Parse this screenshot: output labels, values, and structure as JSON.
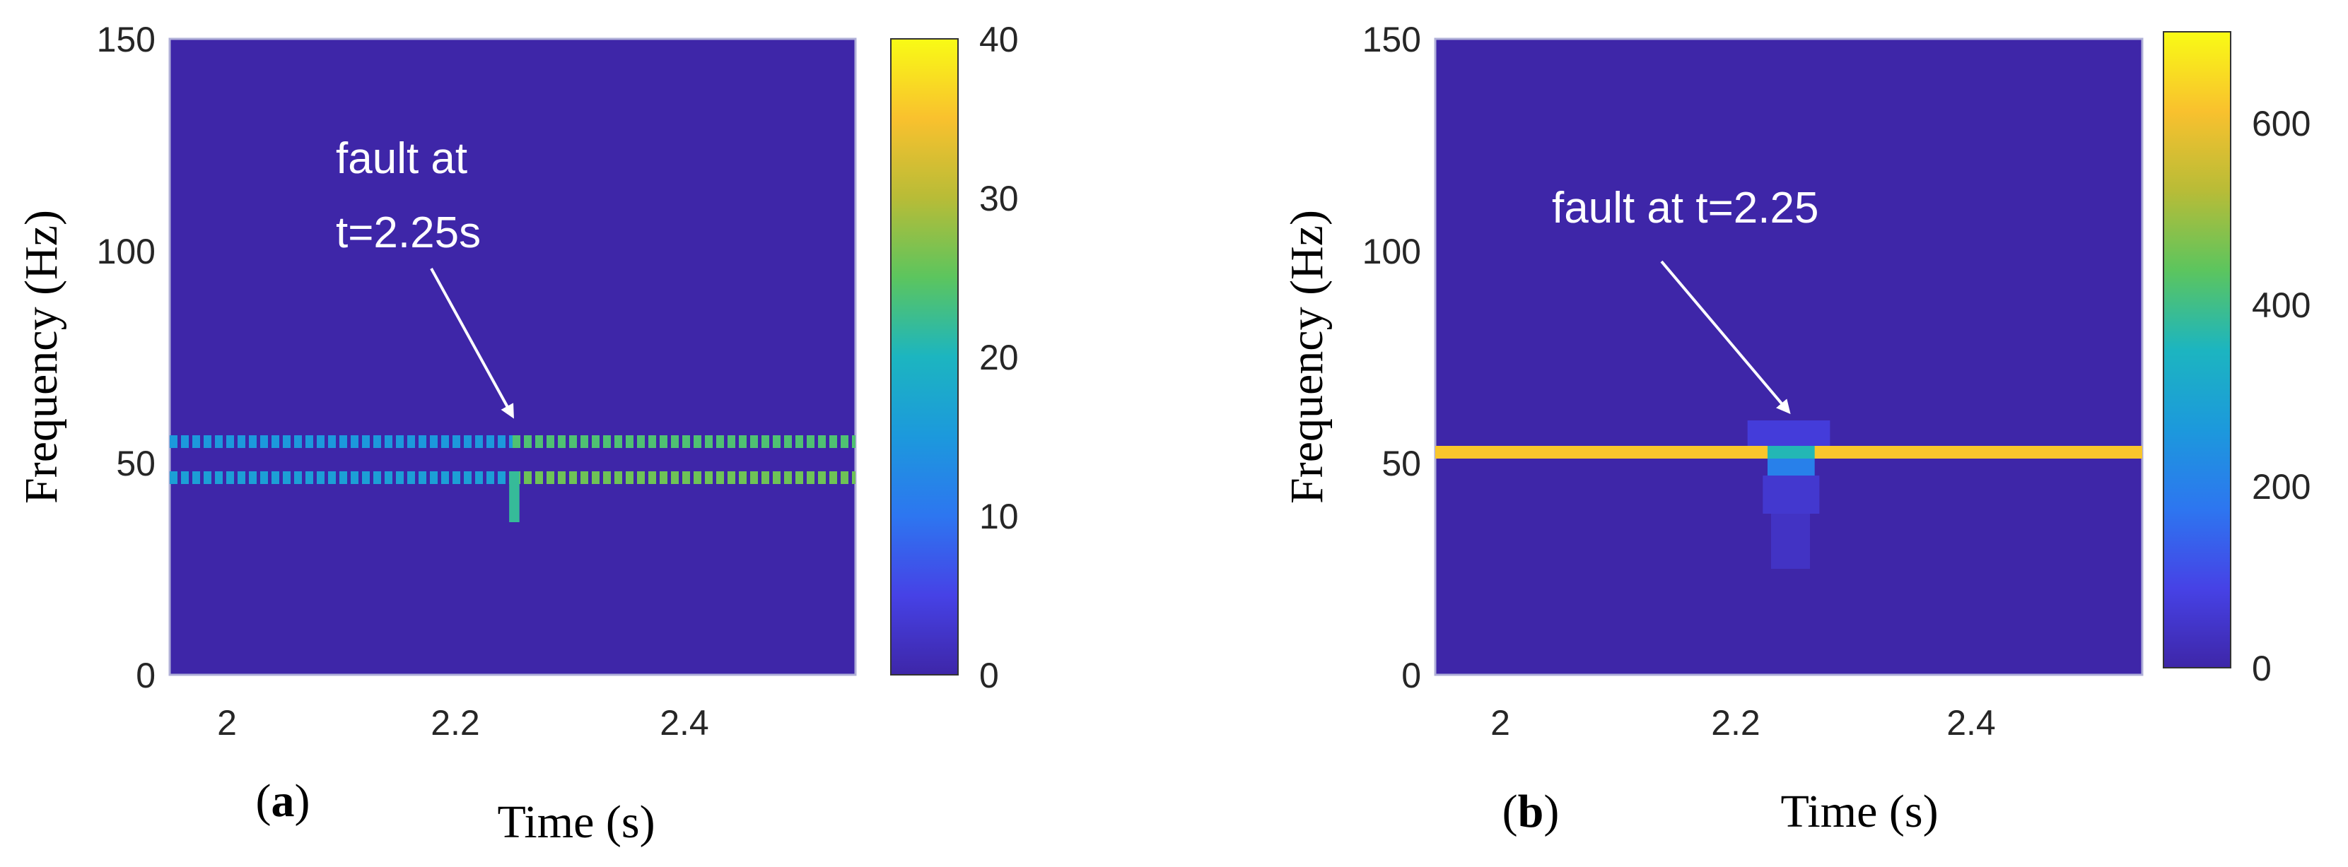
{
  "chart_data": [
    {
      "type": "heatmap",
      "panel_label": "a",
      "xlabel": "Time (s)",
      "ylabel": "Frequency (Hz)",
      "xlim": [
        1.95,
        2.55
      ],
      "ylim": [
        0,
        150
      ],
      "xticks": [
        2,
        2.2,
        2.4
      ],
      "yticks": [
        0,
        50,
        100,
        150
      ],
      "xtick_labels": [
        "2",
        "2.2",
        "2.4"
      ],
      "ytick_labels": [
        "0",
        "50",
        "100",
        "150"
      ],
      "colorbar": {
        "range": [
          0,
          40
        ],
        "ticks": [
          0,
          10,
          20,
          30,
          40
        ],
        "tick_labels": [
          "0",
          "10",
          "20",
          "30",
          "40"
        ]
      },
      "background_value": 0,
      "bands": [
        {
          "t_start": 1.95,
          "t_end": 2.25,
          "f_low": 53.5,
          "f_high": 56.5,
          "value": 15,
          "pulsed": true
        },
        {
          "t_start": 1.95,
          "t_end": 2.25,
          "f_low": 45,
          "f_high": 48,
          "value": 16,
          "pulsed": true
        },
        {
          "t_start": 2.25,
          "t_end": 2.55,
          "f_low": 53.5,
          "f_high": 56.5,
          "value": 24,
          "pulsed": true
        },
        {
          "t_start": 2.25,
          "t_end": 2.55,
          "f_low": 45,
          "f_high": 48,
          "value": 26,
          "pulsed": true
        },
        {
          "t_start": 2.247,
          "t_end": 2.256,
          "f_low": 36,
          "f_high": 48,
          "value": 22,
          "pulsed": false
        }
      ],
      "annotation": {
        "lines": [
          "fault at",
          "t=2.25s"
        ],
        "arrow_to": [
          2.25,
          61
        ]
      }
    },
    {
      "type": "heatmap",
      "panel_label": "b",
      "xlabel": "Time (s)",
      "ylabel": "Frequency (Hz)",
      "xlim": [
        1.95,
        2.55
      ],
      "ylim": [
        0,
        150
      ],
      "xticks": [
        2,
        2.2,
        2.4
      ],
      "yticks": [
        0,
        50,
        100,
        150
      ],
      "xtick_labels": [
        "2",
        "2.2",
        "2.4"
      ],
      "ytick_labels": [
        "0",
        "50",
        "100",
        "150"
      ],
      "colorbar": {
        "range": [
          0,
          700
        ],
        "ticks": [
          0,
          200,
          400,
          600
        ],
        "tick_labels": [
          "0",
          "200",
          "400",
          "600"
        ]
      },
      "background_value": 0,
      "bands": [
        {
          "t_start": 1.95,
          "t_end": 2.55,
          "f_low": 51,
          "f_high": 54,
          "value": 620,
          "pulsed": false
        },
        {
          "t_start": 2.232,
          "t_end": 2.272,
          "f_low": 51,
          "f_high": 54,
          "value": 360,
          "pulsed": false
        },
        {
          "t_start": 2.232,
          "t_end": 2.272,
          "f_low": 47,
          "f_high": 51,
          "value": 200,
          "pulsed": false
        },
        {
          "t_start": 2.215,
          "t_end": 2.285,
          "f_low": 54,
          "f_high": 60,
          "value": 70,
          "pulsed": false
        },
        {
          "t_start": 2.228,
          "t_end": 2.276,
          "f_low": 38,
          "f_high": 47,
          "value": 55,
          "pulsed": false
        },
        {
          "t_start": 2.235,
          "t_end": 2.268,
          "f_low": 25,
          "f_high": 38,
          "value": 40,
          "pulsed": false
        }
      ],
      "annotation": {
        "lines": [
          "fault at t=2.25"
        ],
        "arrow_to": [
          2.25,
          62
        ]
      }
    }
  ]
}
